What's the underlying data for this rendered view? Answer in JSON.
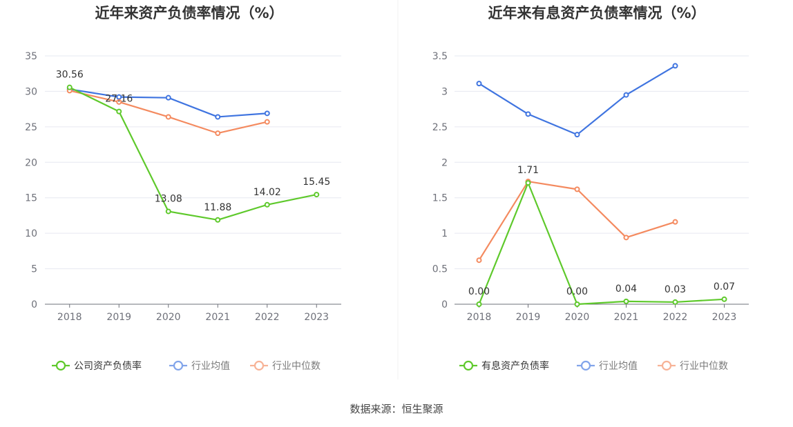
{
  "footer": {
    "source": "数据来源：恒生聚源"
  },
  "chart_data": [
    {
      "type": "line",
      "title": "近年来资产负债率情况（%）",
      "xlabel": "",
      "ylabel": "",
      "categories": [
        "2018",
        "2019",
        "2020",
        "2021",
        "2022",
        "2023"
      ],
      "ylim": [
        0,
        35
      ],
      "yticks": [
        0,
        5,
        10,
        15,
        20,
        25,
        30,
        35
      ],
      "grid": true,
      "legend_position": "bottom",
      "series": [
        {
          "name": "公司资产负债率",
          "color": "#5ec92b",
          "values": [
            30.56,
            27.16,
            13.08,
            11.88,
            14.02,
            15.45
          ],
          "labels": [
            "30.56",
            "27.16",
            "13.08",
            "11.88",
            "14.02",
            "15.45"
          ]
        },
        {
          "name": "行业均值",
          "color": "#3f74e0",
          "values": [
            30.3,
            29.2,
            29.1,
            26.4,
            26.9,
            null
          ]
        },
        {
          "name": "行业中位数",
          "color": "#f48a5f",
          "values": [
            30.1,
            28.5,
            26.4,
            24.1,
            25.7,
            null
          ]
        }
      ]
    },
    {
      "type": "line",
      "title": "近年来有息资产负债率情况（%）",
      "xlabel": "",
      "ylabel": "",
      "categories": [
        "2018",
        "2019",
        "2020",
        "2021",
        "2022",
        "2023"
      ],
      "ylim": [
        0,
        3.5
      ],
      "yticks": [
        0,
        0.5,
        1,
        1.5,
        2,
        2.5,
        3,
        3.5
      ],
      "grid": true,
      "legend_position": "bottom",
      "series": [
        {
          "name": "有息资产负债率",
          "color": "#5ec92b",
          "values": [
            0.0,
            1.71,
            0.0,
            0.04,
            0.03,
            0.07
          ],
          "labels": [
            "0.00",
            "1.71",
            "0.00",
            "0.04",
            "0.03",
            "0.07"
          ]
        },
        {
          "name": "行业均值",
          "color": "#3f74e0",
          "values": [
            3.11,
            2.68,
            2.39,
            2.95,
            3.36,
            null
          ]
        },
        {
          "name": "行业中位数",
          "color": "#f48a5f",
          "values": [
            0.62,
            1.73,
            1.62,
            0.94,
            1.16,
            null
          ]
        }
      ]
    }
  ]
}
